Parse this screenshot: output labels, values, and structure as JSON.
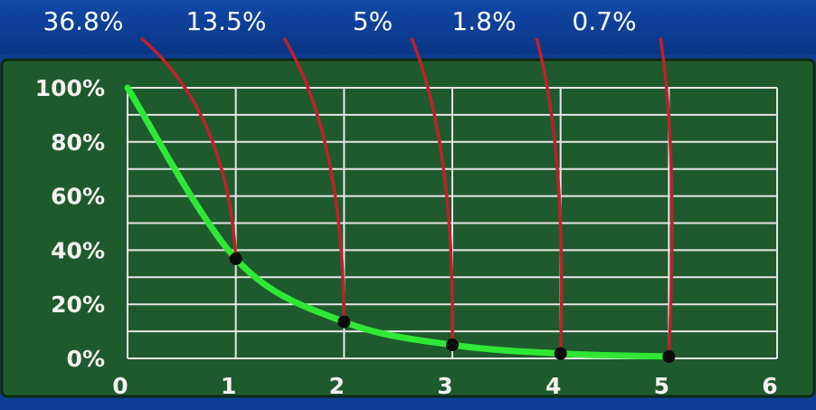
{
  "chart_data": {
    "type": "line",
    "title": "",
    "xlabel": "",
    "ylabel": "",
    "xlim": [
      0,
      6
    ],
    "ylim": [
      0,
      100
    ],
    "x_ticks": [
      "0",
      "1",
      "2",
      "3",
      "4",
      "5",
      "6"
    ],
    "y_ticks": [
      "0%",
      "20%",
      "40%",
      "60%",
      "80%",
      "100%"
    ],
    "grid": true,
    "series": [
      {
        "x": [
          0,
          1,
          2,
          3,
          4,
          5
        ],
        "values": [
          100,
          36.8,
          13.5,
          5,
          1.8,
          0.7
        ]
      }
    ],
    "annotations": [
      {
        "x": 1,
        "y": 36.8,
        "label": "36.8%"
      },
      {
        "x": 2,
        "y": 13.5,
        "label": "13.5%"
      },
      {
        "x": 3,
        "y": 5,
        "label": "5%"
      },
      {
        "x": 4,
        "y": 1.8,
        "label": "1.8%"
      },
      {
        "x": 5,
        "y": 0.7,
        "label": "0.7%"
      }
    ],
    "colors": {
      "background": "#0d3d93",
      "plot_panel": "#1f5a2c",
      "grid": "#e6e6e6",
      "curve": "#2ee835",
      "callout_line": "#c0202a",
      "marker": "#0a0a0a"
    }
  }
}
